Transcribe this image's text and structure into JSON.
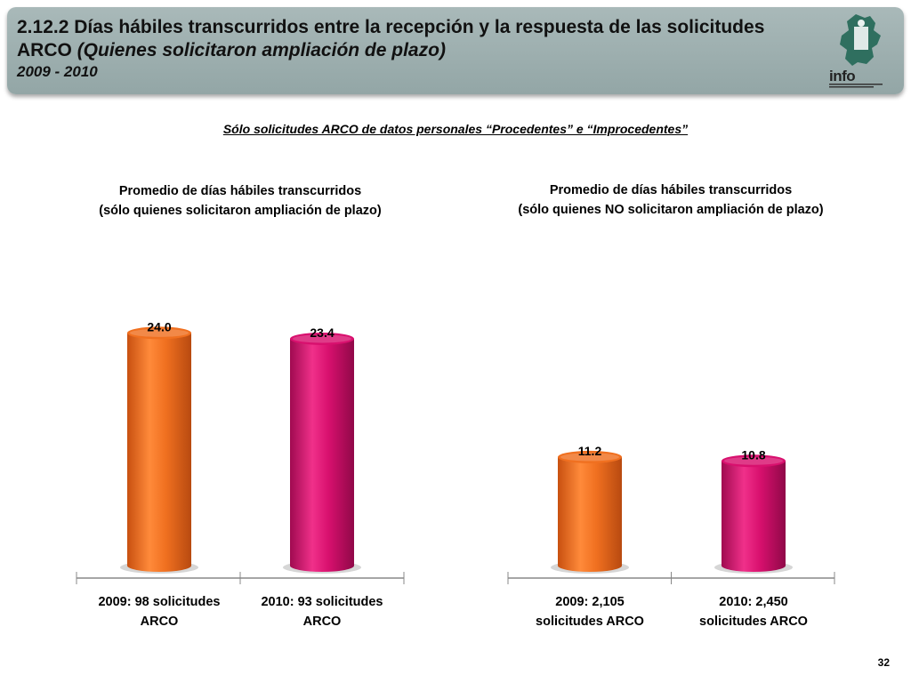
{
  "header": {
    "title_main": "2.12.2 Días hábiles transcurridos entre la recepción y la respuesta de las solicitudes ARCO",
    "title_italic": "(Quienes solicitaron ampliación de plazo)",
    "years": "2009 - 2010"
  },
  "logo": {
    "text": "info"
  },
  "subtitle": "Sólo solicitudes ARCO de datos personales “Procedentes” e “Improcedentes”",
  "page_number": "32",
  "colors": {
    "orange": "#f07020",
    "magenta": "#d8106e",
    "header_bg": "#9fb0b0"
  },
  "chart_data": [
    {
      "type": "bar",
      "title_line1": "Promedio de días hábiles transcurridos",
      "title_line2": "(sólo quienes solicitaron ampliación de plazo)",
      "categories": [
        [
          "2009: 98 solicitudes",
          "ARCO"
        ],
        [
          "2010: 93 solicitudes",
          "ARCO"
        ]
      ],
      "values": [
        24.0,
        23.4
      ],
      "labels": [
        "24.0",
        "23.4"
      ],
      "colors": [
        "#f07020",
        "#d8106e"
      ],
      "ylim": [
        0,
        27
      ]
    },
    {
      "type": "bar",
      "title_line1": "Promedio de días hábiles transcurridos",
      "title_line2": "(sólo quienes NO solicitaron ampliación de plazo)",
      "categories": [
        [
          "2009: 2,105",
          "solicitudes ARCO"
        ],
        [
          "2010: 2,450",
          "solicitudes ARCO"
        ]
      ],
      "values": [
        11.2,
        10.8
      ],
      "labels": [
        "11.2",
        "10.8"
      ],
      "colors": [
        "#f07020",
        "#d8106e"
      ],
      "ylim": [
        0,
        27
      ]
    }
  ]
}
